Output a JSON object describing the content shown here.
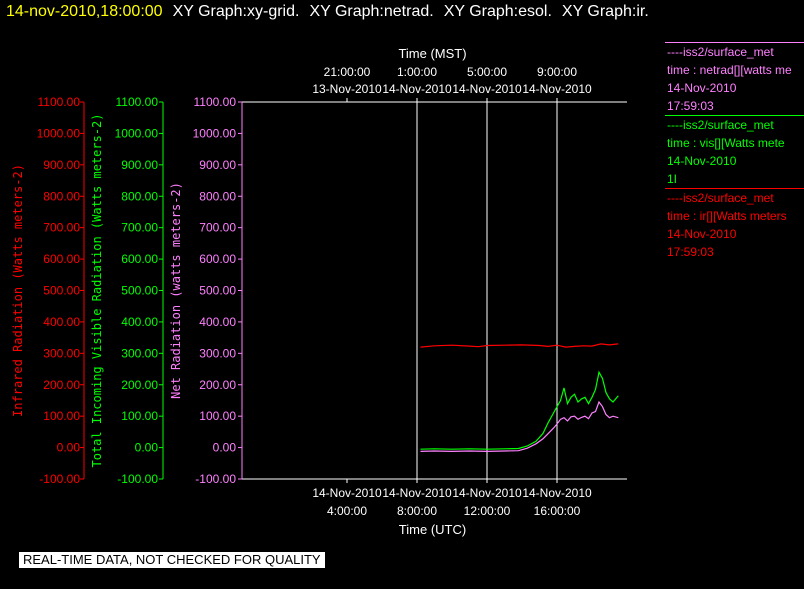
{
  "header": {
    "timestamp": "14-nov-2010,18:00:00",
    "graphs": [
      "XY Graph:xy-grid.",
      "XY Graph:netrad.",
      "XY Graph:esol.",
      "XY Graph:ir."
    ]
  },
  "disclaimer": "REAL-TIME DATA, NOT CHECKED FOR QUALITY",
  "colors": {
    "ir": "#ff0000",
    "vis": "#00ff00",
    "netrad": "#ff80ff",
    "grid": "#ffffff"
  },
  "legend": [
    {
      "line1": "----iss2/surface_met",
      "line2": "time : netrad[][watts me",
      "line3": "14-Nov-2010",
      "line4": "17:59:03",
      "color": "#ff80ff"
    },
    {
      "line1": "----iss2/surface_met",
      "line2": "time : vis[][Watts mete",
      "line3": "14-Nov-2010",
      "line4": "1I",
      "color": "#00ff00"
    },
    {
      "line1": "----iss2/surface_met",
      "line2": "time : ir[][Watts meters",
      "line3": "14-Nov-2010",
      "line4": "17:59:03",
      "color": "#ff0000"
    }
  ],
  "chart_data": {
    "type": "line",
    "x_unit": "hours since 14-Nov-2010 00:00 UTC",
    "xlim": [
      -2.0,
      20.0
    ],
    "top_axis": {
      "label": "Time (MST)",
      "ticks": [
        {
          "x": 4,
          "line1": "21:00:00",
          "line2": "13-Nov-2010"
        },
        {
          "x": 8,
          "line1": "1:00:00",
          "line2": "14-Nov-2010"
        },
        {
          "x": 12,
          "line1": "5:00:00",
          "line2": "14-Nov-2010"
        },
        {
          "x": 16,
          "line1": "9:00:00",
          "line2": "14-Nov-2010"
        }
      ]
    },
    "bottom_axis": {
      "label": "Time (UTC)",
      "ticks": [
        {
          "x": 4,
          "line1": "14-Nov-2010",
          "line2": "4:00:00"
        },
        {
          "x": 8,
          "line1": "14-Nov-2010",
          "line2": "8:00:00"
        },
        {
          "x": 12,
          "line1": "14-Nov-2010",
          "line2": "12:00:00"
        },
        {
          "x": 16,
          "line1": "14-Nov-2010",
          "line2": "16:00:00"
        }
      ]
    },
    "y_axes": [
      {
        "id": "ir",
        "label": "Infrared Radiation (Watts meters-2)",
        "ylim": [
          -100,
          1100
        ],
        "ticks": [
          "-100.00",
          "0.00",
          "100.00",
          "200.00",
          "300.00",
          "400.00",
          "500.00",
          "600.00",
          "700.00",
          "800.00",
          "900.00",
          "1000.00",
          "1100.00"
        ]
      },
      {
        "id": "vis",
        "label": "Total Incoming Visible Radiation (Watts meters-2)",
        "ylim": [
          -100,
          1100
        ],
        "ticks": [
          "-100.00",
          "0.00",
          "100.00",
          "200.00",
          "300.00",
          "400.00",
          "500.00",
          "600.00",
          "700.00",
          "800.00",
          "900.00",
          "1000.00",
          "1100.00"
        ]
      },
      {
        "id": "netrad",
        "label": "Net Radiation (watts meters-2)",
        "ylim": [
          -100,
          1100
        ],
        "ticks": [
          "-100.00",
          "0.00",
          "100.00",
          "200.00",
          "300.00",
          "400.00",
          "500.00",
          "600.00",
          "700.00",
          "800.00",
          "900.00",
          "1000.00",
          "1100.00"
        ]
      }
    ],
    "grid_x": [
      8,
      12,
      16
    ],
    "series": [
      {
        "name": "ir",
        "axis": "ir",
        "x": [
          8.2,
          9.0,
          10.0,
          11.0,
          11.5,
          12.0,
          13.0,
          14.0,
          15.0,
          15.5,
          16.0,
          16.5,
          17.0,
          17.5,
          18.0,
          18.5,
          19.0,
          19.5
        ],
        "y": [
          320,
          324,
          326,
          323,
          321,
          325,
          326,
          327,
          325,
          322,
          326,
          320,
          322,
          324,
          323,
          330,
          327,
          330
        ]
      },
      {
        "name": "vis",
        "axis": "vis",
        "x": [
          8.2,
          9.0,
          10.0,
          11.0,
          12.0,
          13.0,
          13.8,
          14.3,
          14.8,
          15.2,
          15.5,
          15.8,
          16.0,
          16.2,
          16.4,
          16.6,
          16.8,
          17.0,
          17.2,
          17.4,
          17.6,
          17.8,
          18.0,
          18.2,
          18.4,
          18.6,
          18.8,
          19.0,
          19.2,
          19.5
        ],
        "y": [
          -5,
          -4,
          -5,
          -4,
          -5,
          -4,
          -3,
          5,
          20,
          45,
          80,
          110,
          130,
          150,
          190,
          140,
          160,
          170,
          145,
          155,
          160,
          140,
          160,
          185,
          240,
          220,
          175,
          155,
          145,
          165
        ]
      },
      {
        "name": "netrad",
        "axis": "netrad",
        "x": [
          8.2,
          9.0,
          10.0,
          11.0,
          12.0,
          13.0,
          13.8,
          14.3,
          14.8,
          15.2,
          15.5,
          15.8,
          16.0,
          16.2,
          16.4,
          16.6,
          16.8,
          17.0,
          17.2,
          17.4,
          17.6,
          17.8,
          18.0,
          18.2,
          18.4,
          18.6,
          18.8,
          19.0,
          19.2,
          19.5
        ],
        "y": [
          -12,
          -11,
          -12,
          -11,
          -12,
          -11,
          -10,
          -2,
          12,
          28,
          45,
          62,
          75,
          90,
          95,
          85,
          98,
          100,
          90,
          96,
          100,
          92,
          110,
          115,
          145,
          130,
          105,
          95,
          100,
          95
        ]
      }
    ]
  }
}
